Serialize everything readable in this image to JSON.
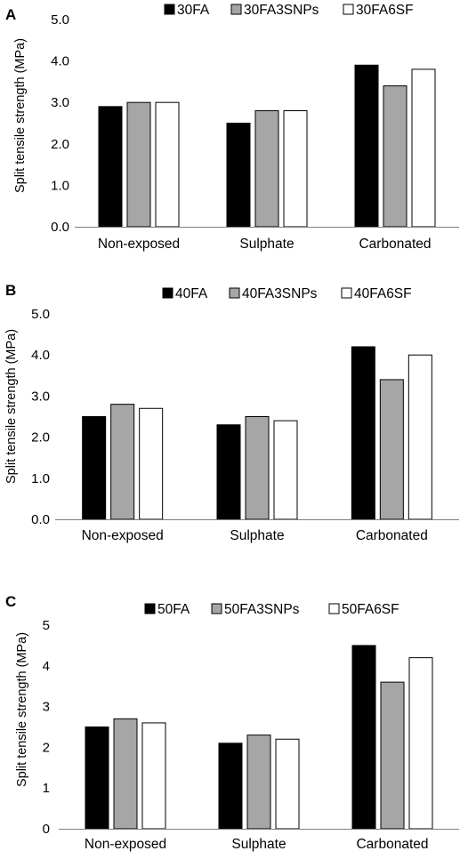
{
  "chart_data": [
    {
      "type": "bar",
      "panel_label": "A",
      "title": "",
      "xlabel": "",
      "ylabel": "Split tensile strength (MPa)",
      "ylim": [
        0,
        5
      ],
      "yticks": [
        "0.0",
        "1.0",
        "2.0",
        "3.0",
        "4.0",
        "5.0"
      ],
      "grid": false,
      "legend_position": "top",
      "categories": [
        "Non-exposed",
        "Sulphate",
        "Carbonated"
      ],
      "series": [
        {
          "name": "30FA",
          "color": "#000000",
          "values": [
            2.9,
            2.5,
            3.9
          ]
        },
        {
          "name": "30FA3SNPs",
          "color": "#a6a6a6",
          "values": [
            3.0,
            2.8,
            3.4
          ]
        },
        {
          "name": "30FA6SF",
          "color": "#ffffff",
          "values": [
            3.0,
            2.8,
            3.8
          ]
        }
      ]
    },
    {
      "type": "bar",
      "panel_label": "B",
      "title": "",
      "xlabel": "",
      "ylabel": "Split tensile strength (MPa)",
      "ylim": [
        0,
        5
      ],
      "yticks": [
        "0.0",
        "1.0",
        "2.0",
        "3.0",
        "4.0",
        "5.0"
      ],
      "grid": false,
      "legend_position": "top",
      "categories": [
        "Non-exposed",
        "Sulphate",
        "Carbonated"
      ],
      "series": [
        {
          "name": "40FA",
          "color": "#000000",
          "values": [
            2.5,
            2.3,
            4.2
          ]
        },
        {
          "name": "40FA3SNPs",
          "color": "#a6a6a6",
          "values": [
            2.8,
            2.5,
            3.4
          ]
        },
        {
          "name": "40FA6SF",
          "color": "#ffffff",
          "values": [
            2.7,
            2.4,
            4.0
          ]
        }
      ]
    },
    {
      "type": "bar",
      "panel_label": "C",
      "title": "",
      "xlabel": "",
      "ylabel": "Split tensile strength (MPa)",
      "ylim": [
        0,
        5
      ],
      "yticks": [
        "0",
        "1",
        "2",
        "3",
        "4",
        "5"
      ],
      "grid": false,
      "legend_position": "top",
      "categories": [
        "Non-exposed",
        "Sulphate",
        "Carbonated"
      ],
      "series": [
        {
          "name": "50FA",
          "color": "#000000",
          "values": [
            2.5,
            2.1,
            4.5
          ]
        },
        {
          "name": "50FA3SNPs",
          "color": "#a6a6a6",
          "values": [
            2.7,
            2.3,
            3.6
          ]
        },
        {
          "name": "50FA6SF",
          "color": "#ffffff",
          "values": [
            2.6,
            2.2,
            4.2
          ]
        }
      ]
    }
  ]
}
